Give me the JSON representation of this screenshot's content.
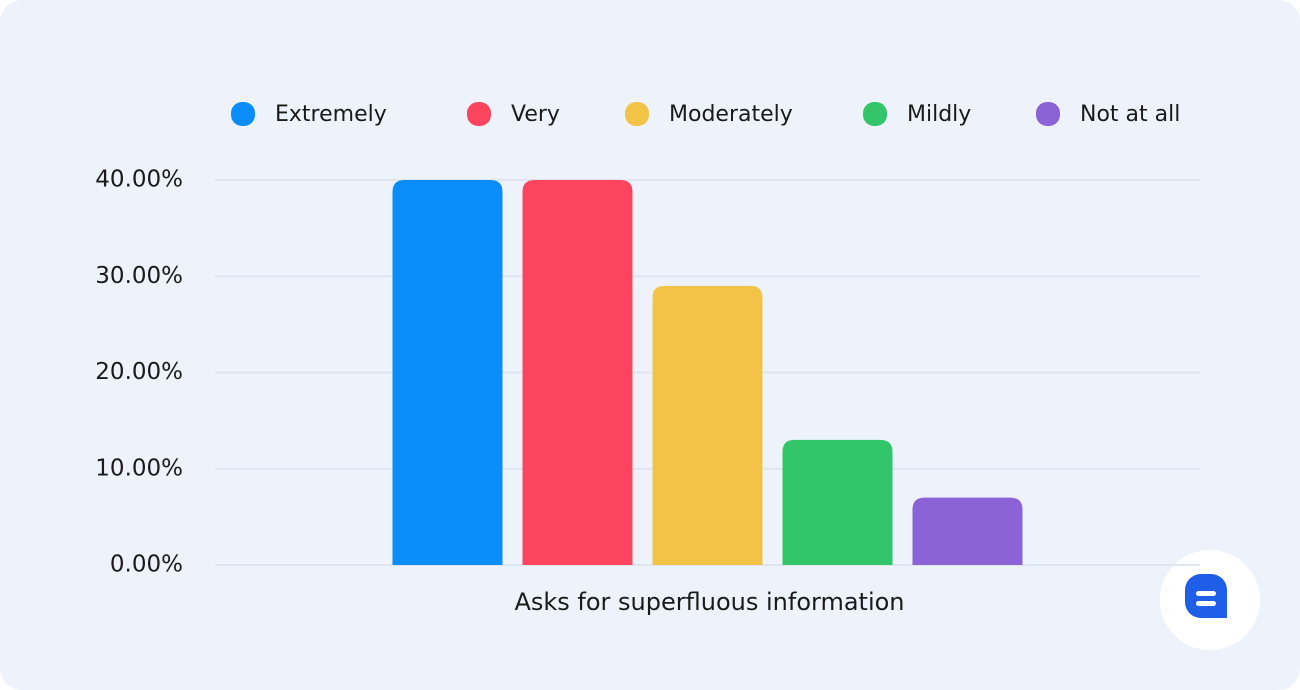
{
  "chart_data": {
    "type": "bar",
    "categories": [
      "Asks for superfluous information"
    ],
    "series": [
      {
        "name": "Extremely",
        "color": "#0a8df8",
        "values": [
          40
        ]
      },
      {
        "name": "Very",
        "color": "#fc445f",
        "values": [
          40
        ]
      },
      {
        "name": "Moderately",
        "color": "#f2c347",
        "values": [
          29
        ]
      },
      {
        "name": "Mildly",
        "color": "#33c56a",
        "values": [
          13
        ]
      },
      {
        "name": "Not at all",
        "color": "#8b63d6",
        "values": [
          7
        ]
      }
    ],
    "ylim": [
      0,
      40
    ],
    "yticks": [
      {
        "value": 0,
        "label": "0.00%"
      },
      {
        "value": 10,
        "label": "10.00%"
      },
      {
        "value": 20,
        "label": "20.00%"
      },
      {
        "value": 30,
        "label": "30.00%"
      },
      {
        "value": 40,
        "label": "40.00%"
      }
    ],
    "grid": true,
    "legend": "top"
  }
}
